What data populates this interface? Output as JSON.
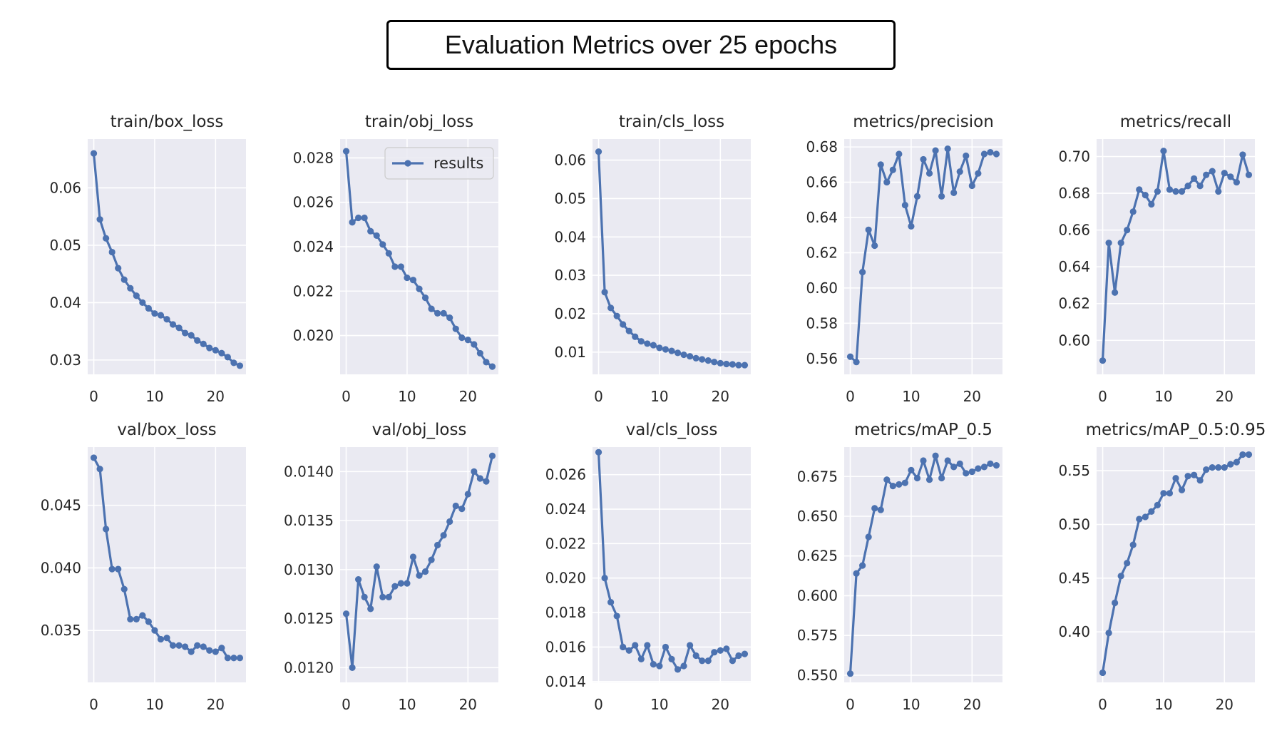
{
  "header": {
    "title": "Evaluation Metrics over 25 epochs"
  },
  "style": {
    "line_color": "#4c72b0",
    "panel_bg": "#eaeaf2",
    "grid_color": "#ffffff"
  },
  "legend": {
    "label": "results",
    "panel": "train/obj_loss",
    "placement": "top-right"
  },
  "chart_data": [
    {
      "type": "line",
      "title": "train/box_loss",
      "xlim": [
        -1,
        25
      ],
      "ylim": [
        0.0275,
        0.0685
      ],
      "xticks": [
        0,
        10,
        20
      ],
      "yticks": [
        0.03,
        0.04,
        0.05,
        0.06
      ],
      "ytick_labels": [
        "0.03",
        "0.04",
        "0.05",
        "0.06"
      ],
      "x": [
        0,
        1,
        2,
        3,
        4,
        5,
        6,
        7,
        8,
        9,
        10,
        11,
        12,
        13,
        14,
        15,
        16,
        17,
        18,
        19,
        20,
        21,
        22,
        23,
        24
      ],
      "y": [
        0.066,
        0.0545,
        0.0512,
        0.0488,
        0.046,
        0.044,
        0.0425,
        0.0412,
        0.04,
        0.039,
        0.0381,
        0.0378,
        0.0371,
        0.0362,
        0.0356,
        0.0347,
        0.0343,
        0.0334,
        0.0328,
        0.0321,
        0.0317,
        0.0312,
        0.0305,
        0.0295,
        0.029
      ]
    },
    {
      "type": "line",
      "title": "train/obj_loss",
      "xlim": [
        -1,
        25
      ],
      "ylim": [
        0.01825,
        0.02885
      ],
      "xticks": [
        0,
        10,
        20
      ],
      "yticks": [
        0.02,
        0.022,
        0.024,
        0.026,
        0.028
      ],
      "ytick_labels": [
        "0.020",
        "0.022",
        "0.024",
        "0.026",
        "0.028"
      ],
      "x": [
        0,
        1,
        2,
        3,
        4,
        5,
        6,
        7,
        8,
        9,
        10,
        11,
        12,
        13,
        14,
        15,
        16,
        17,
        18,
        19,
        20,
        21,
        22,
        23,
        24
      ],
      "y": [
        0.0283,
        0.0251,
        0.0253,
        0.0253,
        0.0247,
        0.0245,
        0.0241,
        0.0237,
        0.0231,
        0.0231,
        0.0226,
        0.0225,
        0.0221,
        0.0217,
        0.0212,
        0.021,
        0.021,
        0.0208,
        0.0203,
        0.0199,
        0.0198,
        0.0196,
        0.0192,
        0.0188,
        0.0186
      ]
    },
    {
      "type": "line",
      "title": "train/cls_loss",
      "xlim": [
        -1,
        25
      ],
      "ylim": [
        0.0042,
        0.0655
      ],
      "xticks": [
        0,
        10,
        20
      ],
      "yticks": [
        0.01,
        0.02,
        0.03,
        0.04,
        0.05,
        0.06
      ],
      "ytick_labels": [
        "0.01",
        "0.02",
        "0.03",
        "0.04",
        "0.05",
        "0.06"
      ],
      "x": [
        0,
        1,
        2,
        3,
        4,
        5,
        6,
        7,
        8,
        9,
        10,
        11,
        12,
        13,
        14,
        15,
        16,
        17,
        18,
        19,
        20,
        21,
        22,
        23,
        24
      ],
      "y": [
        0.0622,
        0.0256,
        0.0215,
        0.0194,
        0.0172,
        0.0155,
        0.014,
        0.0128,
        0.0122,
        0.0118,
        0.0111,
        0.0107,
        0.0103,
        0.0098,
        0.0093,
        0.0089,
        0.0084,
        0.0081,
        0.0078,
        0.0074,
        0.0071,
        0.0069,
        0.0068,
        0.0066,
        0.0066
      ]
    },
    {
      "type": "line",
      "title": "metrics/precision",
      "xlim": [
        -1,
        25
      ],
      "ylim": [
        0.551,
        0.6845
      ],
      "xticks": [
        0,
        10,
        20
      ],
      "yticks": [
        0.56,
        0.58,
        0.6,
        0.62,
        0.64,
        0.66,
        0.68
      ],
      "ytick_labels": [
        "0.56",
        "0.58",
        "0.60",
        "0.62",
        "0.64",
        "0.66",
        "0.68"
      ],
      "x": [
        0,
        1,
        2,
        3,
        4,
        5,
        6,
        7,
        8,
        9,
        10,
        11,
        12,
        13,
        14,
        15,
        16,
        17,
        18,
        19,
        20,
        21,
        22,
        23,
        24
      ],
      "y": [
        0.561,
        0.558,
        0.609,
        0.633,
        0.624,
        0.67,
        0.66,
        0.667,
        0.676,
        0.647,
        0.635,
        0.652,
        0.673,
        0.665,
        0.678,
        0.652,
        0.679,
        0.654,
        0.666,
        0.675,
        0.658,
        0.665,
        0.676,
        0.677,
        0.676
      ]
    },
    {
      "type": "line",
      "title": "metrics/recall",
      "xlim": [
        -1,
        25
      ],
      "ylim": [
        0.5815,
        0.7095
      ],
      "xticks": [
        0,
        10,
        20
      ],
      "yticks": [
        0.6,
        0.62,
        0.64,
        0.66,
        0.68,
        0.7
      ],
      "ytick_labels": [
        "0.60",
        "0.62",
        "0.64",
        "0.66",
        "0.68",
        "0.70"
      ],
      "x": [
        0,
        1,
        2,
        3,
        4,
        5,
        6,
        7,
        8,
        9,
        10,
        11,
        12,
        13,
        14,
        15,
        16,
        17,
        18,
        19,
        20,
        21,
        22,
        23,
        24
      ],
      "y": [
        0.589,
        0.653,
        0.626,
        0.653,
        0.66,
        0.67,
        0.682,
        0.679,
        0.674,
        0.681,
        0.703,
        0.682,
        0.681,
        0.681,
        0.684,
        0.688,
        0.684,
        0.69,
        0.692,
        0.681,
        0.691,
        0.689,
        0.686,
        0.701,
        0.69
      ]
    },
    {
      "type": "line",
      "title": "val/box_loss",
      "xlim": [
        -1,
        25
      ],
      "ylim": [
        0.03085,
        0.04965
      ],
      "xticks": [
        0,
        10,
        20
      ],
      "yticks": [
        0.035,
        0.04,
        0.045
      ],
      "ytick_labels": [
        "0.035",
        "0.040",
        "0.045"
      ],
      "x": [
        0,
        1,
        2,
        3,
        4,
        5,
        6,
        7,
        8,
        9,
        10,
        11,
        12,
        13,
        14,
        15,
        16,
        17,
        18,
        19,
        20,
        21,
        22,
        23,
        24
      ],
      "y": [
        0.0488,
        0.0479,
        0.0431,
        0.0399,
        0.0399,
        0.0383,
        0.0359,
        0.0359,
        0.0362,
        0.0357,
        0.035,
        0.0343,
        0.0344,
        0.0338,
        0.0338,
        0.0337,
        0.0333,
        0.0338,
        0.0337,
        0.0334,
        0.0333,
        0.0336,
        0.0328,
        0.0328,
        0.0328
      ]
    },
    {
      "type": "line",
      "title": "val/obj_loss",
      "xlim": [
        -1,
        25
      ],
      "ylim": [
        0.01185,
        0.01425
      ],
      "xticks": [
        0,
        10,
        20
      ],
      "yticks": [
        0.012,
        0.0125,
        0.013,
        0.0135,
        0.014
      ],
      "ytick_labels": [
        "0.0120",
        "0.0125",
        "0.0130",
        "0.0135",
        "0.0140"
      ],
      "x": [
        0,
        1,
        2,
        3,
        4,
        5,
        6,
        7,
        8,
        9,
        10,
        11,
        12,
        13,
        14,
        15,
        16,
        17,
        18,
        19,
        20,
        21,
        22,
        23,
        24
      ],
      "y": [
        0.01255,
        0.012,
        0.0129,
        0.01272,
        0.0126,
        0.01303,
        0.01272,
        0.01272,
        0.01283,
        0.01286,
        0.01286,
        0.01313,
        0.01294,
        0.01298,
        0.0131,
        0.01325,
        0.01335,
        0.01349,
        0.01365,
        0.01362,
        0.01377,
        0.014,
        0.01393,
        0.0139,
        0.01416
      ]
    },
    {
      "type": "line",
      "title": "val/cls_loss",
      "xlim": [
        -1,
        25
      ],
      "ylim": [
        0.01395,
        0.0276
      ],
      "xticks": [
        0,
        10,
        20
      ],
      "yticks": [
        0.014,
        0.016,
        0.018,
        0.02,
        0.022,
        0.024,
        0.026
      ],
      "ytick_labels": [
        "0.014",
        "0.016",
        "0.018",
        "0.020",
        "0.022",
        "0.024",
        "0.026"
      ],
      "x": [
        0,
        1,
        2,
        3,
        4,
        5,
        6,
        7,
        8,
        9,
        10,
        11,
        12,
        13,
        14,
        15,
        16,
        17,
        18,
        19,
        20,
        21,
        22,
        23,
        24
      ],
      "y": [
        0.0273,
        0.02,
        0.0186,
        0.0178,
        0.016,
        0.0158,
        0.0161,
        0.0153,
        0.0161,
        0.015,
        0.0149,
        0.016,
        0.0153,
        0.0147,
        0.0149,
        0.0161,
        0.0155,
        0.0152,
        0.0152,
        0.0157,
        0.0158,
        0.0159,
        0.0152,
        0.0155,
        0.0156
      ]
    },
    {
      "type": "line",
      "title": "metrics/mAP_0.5",
      "xlim": [
        -1,
        25
      ],
      "ylim": [
        0.5455,
        0.6935
      ],
      "xticks": [
        0,
        10,
        20
      ],
      "yticks": [
        0.55,
        0.575,
        0.6,
        0.625,
        0.65,
        0.675
      ],
      "ytick_labels": [
        "0.550",
        "0.575",
        "0.600",
        "0.625",
        "0.650",
        "0.675"
      ],
      "x": [
        0,
        1,
        2,
        3,
        4,
        5,
        6,
        7,
        8,
        9,
        10,
        11,
        12,
        13,
        14,
        15,
        16,
        17,
        18,
        19,
        20,
        21,
        22,
        23,
        24
      ],
      "y": [
        0.551,
        0.614,
        0.619,
        0.637,
        0.655,
        0.654,
        0.673,
        0.669,
        0.67,
        0.671,
        0.679,
        0.674,
        0.685,
        0.673,
        0.688,
        0.674,
        0.685,
        0.681,
        0.683,
        0.677,
        0.678,
        0.68,
        0.681,
        0.683,
        0.682
      ]
    },
    {
      "type": "line",
      "title": "metrics/mAP_0.5:0.95",
      "xlim": [
        -1,
        25
      ],
      "ylim": [
        0.353,
        0.572
      ],
      "xticks": [
        0,
        10,
        20
      ],
      "yticks": [
        0.4,
        0.45,
        0.5,
        0.55
      ],
      "ytick_labels": [
        "0.40",
        "0.45",
        "0.50",
        "0.55"
      ],
      "x": [
        0,
        1,
        2,
        3,
        4,
        5,
        6,
        7,
        8,
        9,
        10,
        11,
        12,
        13,
        14,
        15,
        16,
        17,
        18,
        19,
        20,
        21,
        22,
        23,
        24
      ],
      "y": [
        0.362,
        0.399,
        0.427,
        0.452,
        0.464,
        0.481,
        0.505,
        0.507,
        0.512,
        0.518,
        0.529,
        0.529,
        0.543,
        0.532,
        0.545,
        0.546,
        0.541,
        0.551,
        0.553,
        0.553,
        0.553,
        0.556,
        0.558,
        0.565,
        0.565
      ]
    }
  ]
}
